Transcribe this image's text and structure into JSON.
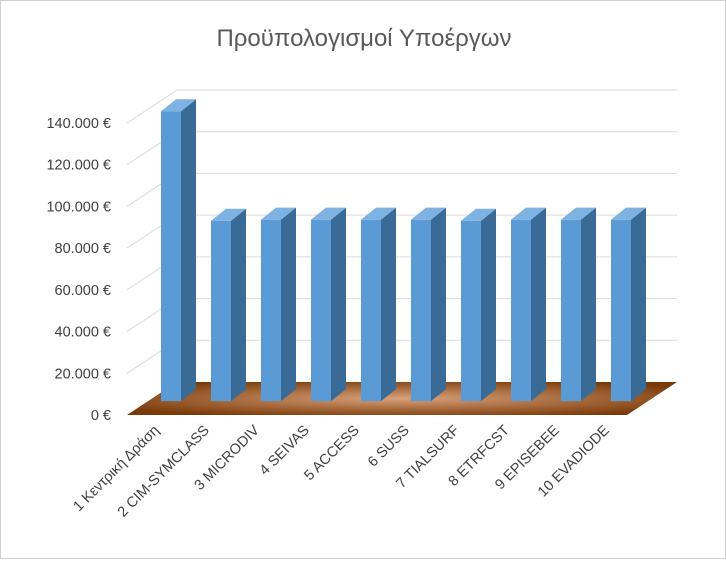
{
  "chart_data": {
    "type": "bar",
    "title": "Προϋπολογισμοί Υποέργων",
    "categories": [
      "1 Κεντρική Δράση",
      "2 CIM-SYMCLASS",
      "3 MICRODIV",
      "4 SEIVAS",
      "5 ACCESS",
      "6 SUSS",
      "7 TIALSURF",
      "8 ETRFCST",
      "9 EPISEBEE",
      "10 EVADIODE"
    ],
    "values": [
      139000,
      86500,
      87000,
      87000,
      87000,
      87000,
      86500,
      87000,
      87000,
      87000
    ],
    "ylim": [
      0,
      140000
    ],
    "y_ticks": [
      "0 €",
      "20.000 €",
      "40.000 €",
      "60.000 €",
      "80.000 €",
      "100.000 €",
      "120.000 €",
      "140.000 €"
    ],
    "grid": true,
    "style": "3d-column",
    "colors": {
      "bar_front": "#5b9bd5",
      "bar_side": "#3a6a96",
      "bar_top": "#7eb2e2",
      "floor_center": "#d9a07a",
      "floor_edge": "#7a3a08",
      "gridline": "#d9d9d9",
      "axis_text": "#404040",
      "title_text": "#595959"
    }
  }
}
